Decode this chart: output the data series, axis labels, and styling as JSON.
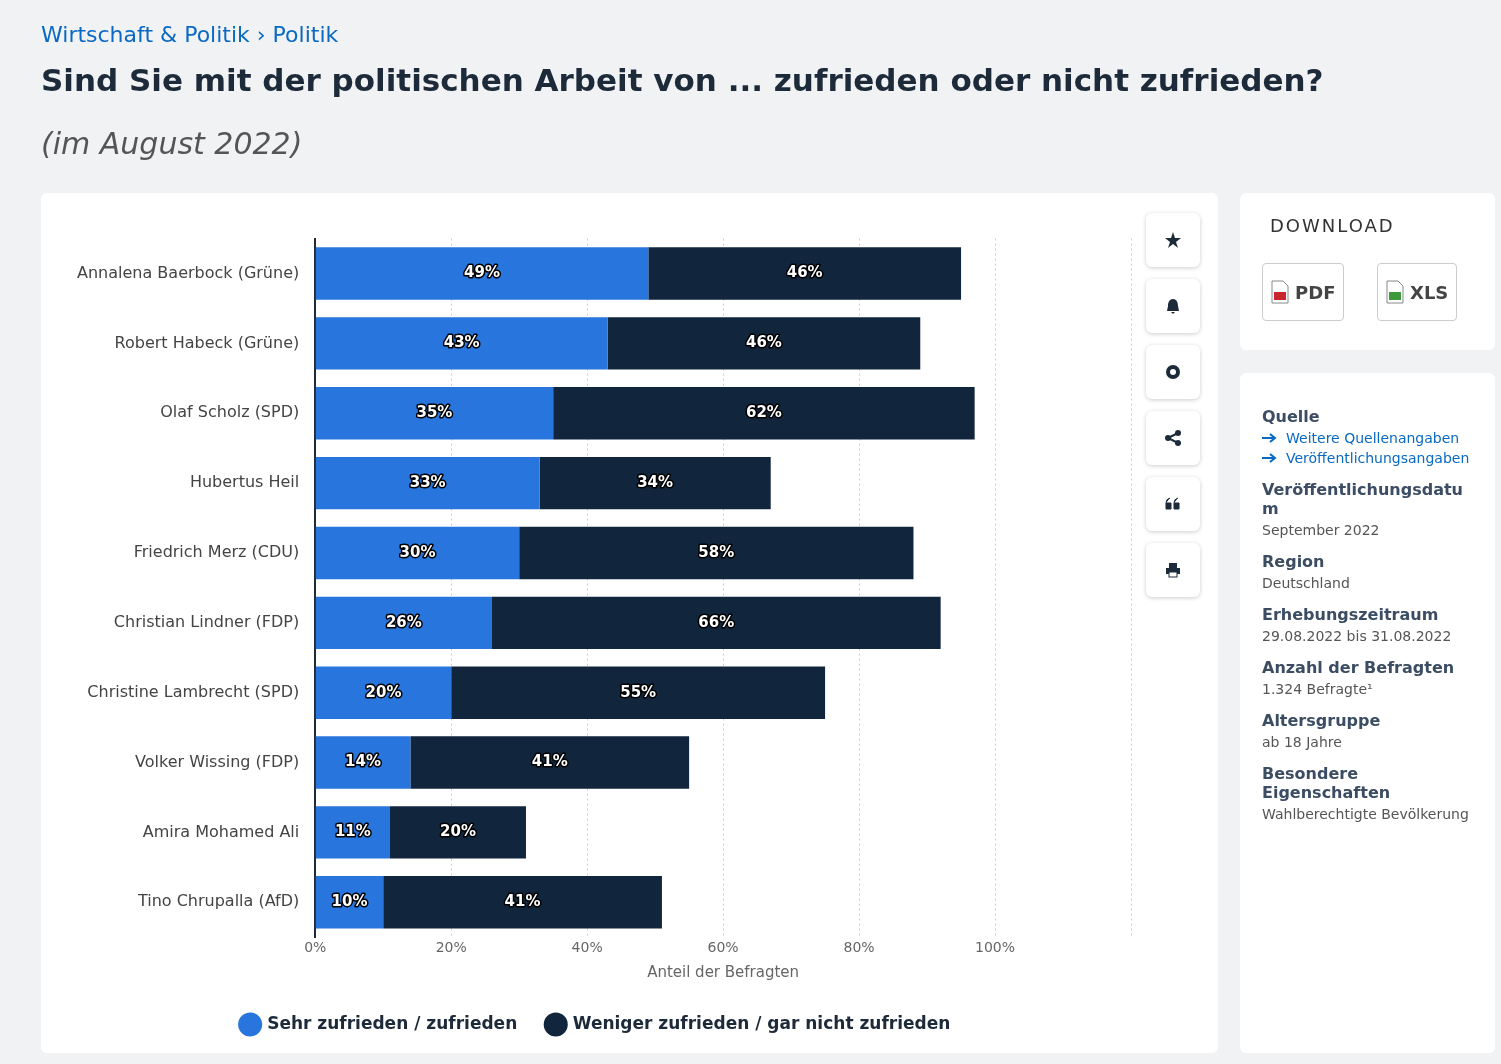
{
  "chart_data": {
    "type": "bar",
    "orientation": "horizontal",
    "stacked": true,
    "title": "Sind Sie mit der politischen Arbeit von ... zufrieden oder nicht zufrieden?",
    "subtitle": "(im August 2022)",
    "xlabel": "Anteil der Befragten",
    "categories": [
      "Annalena Baerbock (Grüne)",
      "Robert Habeck (Grüne)",
      "Olaf Scholz (SPD)",
      "Hubertus Heil",
      "Friedrich Merz (CDU)",
      "Christian Lindner (FDP)",
      "Christine Lambrecht (SPD)",
      "Volker Wissing (FDP)",
      "Amira Mohamed Ali",
      "Tino Chrupalla (AfD)"
    ],
    "series": [
      {
        "name": "Sehr zufrieden / zufrieden",
        "color": "#2876dd",
        "values": [
          49,
          43,
          35,
          33,
          30,
          26,
          20,
          14,
          11,
          10
        ],
        "value_labels": [
          "49%",
          "43%",
          "35%",
          "33%",
          "30%",
          "26%",
          "20%",
          "14%",
          "11%",
          "10%"
        ]
      },
      {
        "name": "Weniger zufrieden / gar nicht zufrieden",
        "color": "#11263d",
        "values": [
          46,
          46,
          62,
          34,
          58,
          66,
          55,
          41,
          20,
          41
        ],
        "value_labels": [
          "46%",
          "46%",
          "62%",
          "34%",
          "58%",
          "66%",
          "55%",
          "41%",
          "20%",
          "41%"
        ]
      }
    ],
    "xlim": [
      0,
      120
    ],
    "xticks": [
      {
        "value": 0,
        "label": "0%"
      },
      {
        "value": 20,
        "label": "20%"
      },
      {
        "value": 40,
        "label": "40%"
      },
      {
        "value": 60,
        "label": "60%"
      },
      {
        "value": 80,
        "label": "80%"
      },
      {
        "value": 100,
        "label": "100%"
      },
      {
        "value": 120,
        "label": null
      }
    ],
    "grid": "x",
    "legend": "bottom",
    "annotations": [
      "Wirtschaft & Politik › Politik",
      "DOWNLOAD",
      "PDF",
      "XLS",
      "Quelle",
      "Weitere Quellenangaben",
      "Veröffentlichungsangaben",
      "Veröffentlichungsdatum",
      "September 2022",
      "Region",
      "Deutschland",
      "Erhebungszeitraum",
      "29.08.2022 bis 31.08.2022",
      "Anzahl der Befragten",
      "1.324 Befragte¹",
      "Altersgruppe",
      "ab 18 Jahre",
      "Besondere Eigenschaften",
      "Wahlberechtigte Bevölkerung"
    ]
  }
}
